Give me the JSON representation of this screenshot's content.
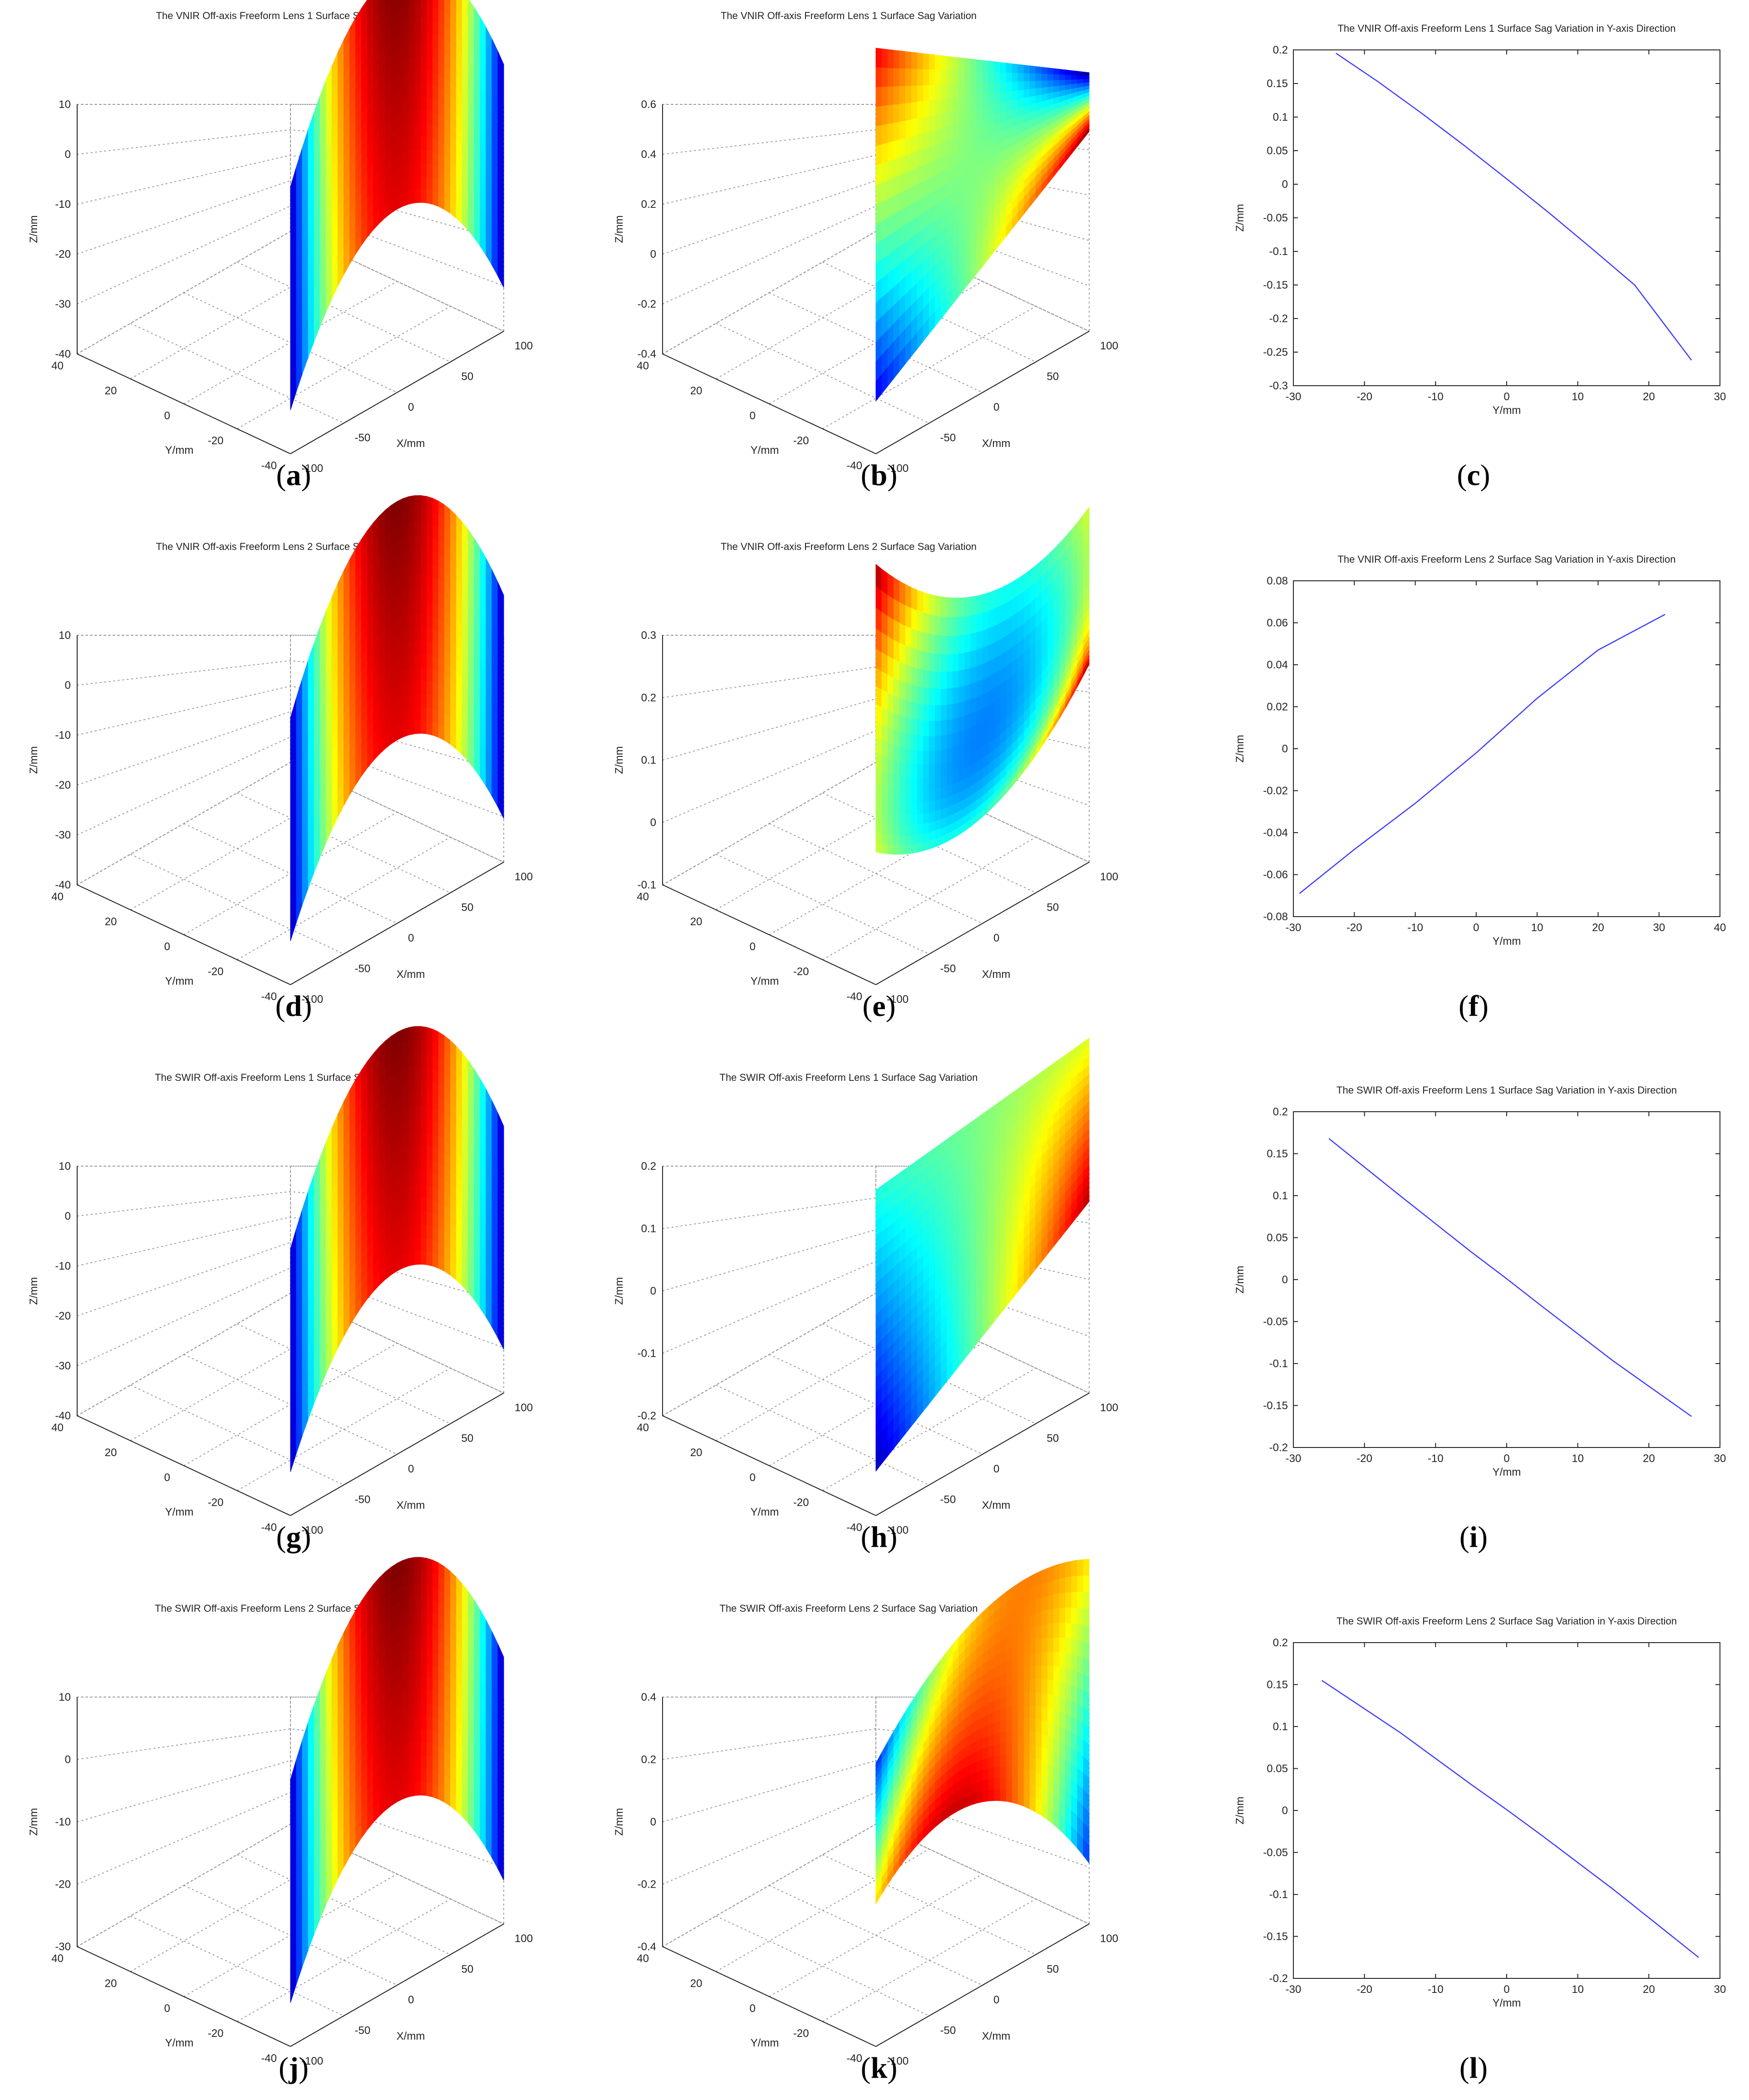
{
  "figure": {
    "panels": [
      {
        "id": "a",
        "kind": "surface",
        "caption_letter": "a",
        "title": "The VNIR Off-axis Freeform Lens 1 Surface Sag",
        "zlim": [
          -40,
          10
        ],
        "zticks": [
          "10",
          "0",
          "-10",
          "-20",
          "-30",
          "-40"
        ],
        "yticks": [
          "40",
          "20",
          "0",
          "-20",
          "-40"
        ],
        "xticks": [
          "-100",
          "-50",
          "0",
          "50",
          "100"
        ],
        "xlabel": "X/mm",
        "ylabel": "Y/mm",
        "zlabel": "Z/mm",
        "shape": "ridge"
      },
      {
        "id": "b",
        "kind": "surface",
        "caption_letter": "b",
        "title": "The VNIR Off-axis Freeform Lens 1 Surface Sag Variation",
        "zlim": [
          -0.4,
          0.6
        ],
        "zticks": [
          "0.6",
          "0.4",
          "0.2",
          "0",
          "-0.2",
          "-0.4"
        ],
        "yticks": [
          "40",
          "20",
          "0",
          "-20",
          "-40"
        ],
        "xticks": [
          "-100",
          "-50",
          "0",
          "50",
          "100"
        ],
        "xlabel": "X/mm",
        "ylabel": "Y/mm",
        "zlabel": "Z/mm",
        "shape": "twist"
      },
      {
        "id": "c",
        "kind": "line",
        "caption_letter": "c",
        "title": "The VNIR Off-axis Freeform Lens 1 Surface Sag Variation in Y-axis Direction",
        "xlabel": "Y/mm",
        "ylabel": "Z/mm",
        "xlim": [
          -30,
          30
        ],
        "ylim": [
          -0.3,
          0.2
        ],
        "xticks": [
          "-30",
          "-20",
          "-10",
          "0",
          "10",
          "20",
          "30"
        ],
        "yticks": [
          "0.2",
          "0.15",
          "0.1",
          "0.05",
          "0",
          "-0.05",
          "-0.1",
          "-0.15",
          "-0.2",
          "-0.25",
          "-0.3"
        ],
        "x": [
          -24,
          -18,
          -12,
          -6,
          0,
          6,
          12,
          18,
          26
        ],
        "y": [
          0.195,
          0.152,
          0.106,
          0.058,
          0.008,
          -0.043,
          -0.096,
          -0.15,
          -0.262
        ]
      },
      {
        "id": "d",
        "kind": "surface",
        "caption_letter": "d",
        "title": "The VNIR Off-axis Freeform Lens 2 Surface Sag",
        "zlim": [
          -40,
          10
        ],
        "zticks": [
          "10",
          "0",
          "-10",
          "-20",
          "-30",
          "-40"
        ],
        "yticks": [
          "40",
          "20",
          "0",
          "-20",
          "-40"
        ],
        "xticks": [
          "-100",
          "-50",
          "0",
          "50",
          "100"
        ],
        "xlabel": "X/mm",
        "ylabel": "Y/mm",
        "zlabel": "Z/mm",
        "shape": "ridge"
      },
      {
        "id": "e",
        "kind": "surface",
        "caption_letter": "e",
        "title": "The VNIR Off-axis Freeform Lens 2 Surface Sag Variation",
        "zlim": [
          -0.1,
          0.3
        ],
        "zticks": [
          "0.3",
          "0.2",
          "0.1",
          "0",
          "-0.1"
        ],
        "yticks": [
          "40",
          "20",
          "0",
          "-20",
          "-40"
        ],
        "xticks": [
          "-100",
          "-50",
          "0",
          "50",
          "100"
        ],
        "xlabel": "X/mm",
        "ylabel": "Y/mm",
        "zlabel": "Z/mm",
        "shape": "bowl"
      },
      {
        "id": "f",
        "kind": "line",
        "caption_letter": "f",
        "title": "The VNIR Off-axis Freeform Lens 2 Surface Sag Variation in Y-axis Direction",
        "xlabel": "Y/mm",
        "ylabel": "Z/mm",
        "xlim": [
          -30,
          40
        ],
        "ylim": [
          -0.08,
          0.08
        ],
        "xticks": [
          "-30",
          "-20",
          "-10",
          "0",
          "10",
          "20",
          "30",
          "40"
        ],
        "yticks": [
          "0.08",
          "0.06",
          "0.04",
          "0.02",
          "0",
          "-0.02",
          "-0.04",
          "-0.06",
          "-0.08"
        ],
        "x": [
          -29,
          -20,
          -10,
          0,
          10,
          20,
          31
        ],
        "y": [
          -0.069,
          -0.048,
          -0.026,
          -0.002,
          0.024,
          0.047,
          0.064
        ]
      },
      {
        "id": "g",
        "kind": "surface",
        "caption_letter": "g",
        "title": "The SWIR Off-axis Freeform Lens 1 Surface Sag",
        "zlim": [
          -40,
          10
        ],
        "zticks": [
          "10",
          "0",
          "-10",
          "-20",
          "-30",
          "-40"
        ],
        "yticks": [
          "40",
          "20",
          "0",
          "-20",
          "-40"
        ],
        "xticks": [
          "-100",
          "-50",
          "0",
          "50",
          "100"
        ],
        "xlabel": "X/mm",
        "ylabel": "Y/mm",
        "zlabel": "Z/mm",
        "shape": "ridge"
      },
      {
        "id": "h",
        "kind": "surface",
        "caption_letter": "h",
        "title": "The SWIR Off-axis Freeform Lens 1 Surface Sag Variation",
        "zlim": [
          -0.2,
          0.2
        ],
        "zticks": [
          "0.2",
          "0.1",
          "0",
          "-0.1",
          "-0.2"
        ],
        "yticks": [
          "40",
          "20",
          "0",
          "-20",
          "-40"
        ],
        "xticks": [
          "-100",
          "-50",
          "0",
          "50",
          "100"
        ],
        "xlabel": "X/mm",
        "ylabel": "Y/mm",
        "zlabel": "Z/mm",
        "shape": "wing"
      },
      {
        "id": "i",
        "kind": "line",
        "caption_letter": "i",
        "title": "The SWIR Off-axis Freeform Lens 1 Surface Sag Variation in Y-axis Direction",
        "xlabel": "Y/mm",
        "ylabel": "Z/mm",
        "xlim": [
          -30,
          30
        ],
        "ylim": [
          -0.2,
          0.2
        ],
        "xticks": [
          "-30",
          "-20",
          "-10",
          "0",
          "10",
          "20",
          "30"
        ],
        "yticks": [
          "0.2",
          "0.15",
          "0.1",
          "0.05",
          "0",
          "-0.05",
          "-0.1",
          "-0.15",
          "-0.2"
        ],
        "x": [
          -25,
          -15,
          -5,
          0,
          5,
          15,
          26
        ],
        "y": [
          0.168,
          0.1,
          0.033,
          0.001,
          -0.032,
          -0.097,
          -0.163
        ]
      },
      {
        "id": "j",
        "kind": "surface",
        "caption_letter": "j",
        "title": "The SWIR Off-axis Freeform Lens 2 Surface Sag",
        "zlim": [
          -30,
          10
        ],
        "zticks": [
          "10",
          "0",
          "-10",
          "-20",
          "-30"
        ],
        "yticks": [
          "40",
          "20",
          "0",
          "-20",
          "-40"
        ],
        "xticks": [
          "-100",
          "-50",
          "0",
          "50",
          "100"
        ],
        "xlabel": "X/mm",
        "ylabel": "Y/mm",
        "zlabel": "Z/mm",
        "shape": "ridge"
      },
      {
        "id": "k",
        "kind": "surface",
        "caption_letter": "k",
        "title": "The SWIR Off-axis Freeform Lens 2 Surface Sag Variation",
        "zlim": [
          -0.4,
          0.4
        ],
        "zticks": [
          "0.4",
          "0.2",
          "0",
          "-0.2",
          "-0.4"
        ],
        "yticks": [
          "40",
          "20",
          "0",
          "-20",
          "-40"
        ],
        "xticks": [
          "-100",
          "-50",
          "0",
          "50",
          "100"
        ],
        "xlabel": "X/mm",
        "ylabel": "Y/mm",
        "zlabel": "Z/mm",
        "shape": "saddle"
      },
      {
        "id": "l",
        "kind": "line",
        "caption_letter": "l",
        "title": "The SWIR Off-axis Freeform Lens 2 Surface Sag Variation in Y-axis Direction",
        "xlabel": "Y/mm",
        "ylabel": "Z/mm",
        "xlim": [
          -30,
          30
        ],
        "ylim": [
          -0.2,
          0.2
        ],
        "xticks": [
          "-30",
          "-20",
          "-10",
          "0",
          "10",
          "20",
          "30"
        ],
        "yticks": [
          "0.2",
          "0.15",
          "0.1",
          "0.05",
          "0",
          "-0.05",
          "-0.1",
          "-0.15",
          "-0.2"
        ],
        "x": [
          -26,
          -15,
          -5,
          0,
          5,
          15,
          27
        ],
        "y": [
          0.155,
          0.093,
          0.031,
          0.001,
          -0.03,
          -0.094,
          -0.175
        ]
      }
    ]
  },
  "chart_data": [
    {
      "panel": "c",
      "type": "line",
      "title": "The VNIR Off-axis Freeform Lens 1 Surface Sag Variation in Y-axis Direction",
      "xlabel": "Y/mm",
      "ylabel": "Z/mm",
      "xlim": [
        -30,
        30
      ],
      "ylim": [
        -0.3,
        0.2
      ],
      "x": [
        -24,
        -18,
        -12,
        -6,
        0,
        6,
        12,
        18,
        26
      ],
      "y": [
        0.195,
        0.152,
        0.106,
        0.058,
        0.008,
        -0.043,
        -0.096,
        -0.15,
        -0.262
      ]
    },
    {
      "panel": "f",
      "type": "line",
      "title": "The VNIR Off-axis Freeform Lens 2 Surface Sag Variation in Y-axis Direction",
      "xlabel": "Y/mm",
      "ylabel": "Z/mm",
      "xlim": [
        -30,
        40
      ],
      "ylim": [
        -0.08,
        0.08
      ],
      "x": [
        -29,
        -20,
        -10,
        0,
        10,
        20,
        31
      ],
      "y": [
        -0.069,
        -0.048,
        -0.026,
        -0.002,
        0.024,
        0.047,
        0.064
      ]
    },
    {
      "panel": "i",
      "type": "line",
      "title": "The SWIR Off-axis Freeform Lens 1 Surface Sag Variation in Y-axis Direction",
      "xlabel": "Y/mm",
      "ylabel": "Z/mm",
      "xlim": [
        -30,
        30
      ],
      "ylim": [
        -0.2,
        0.2
      ],
      "x": [
        -25,
        -15,
        -5,
        0,
        5,
        15,
        26
      ],
      "y": [
        0.168,
        0.1,
        0.033,
        0.001,
        -0.032,
        -0.097,
        -0.163
      ]
    },
    {
      "panel": "l",
      "type": "line",
      "title": "The SWIR Off-axis Freeform Lens 2 Surface Sag Variation in Y-axis Direction",
      "xlabel": "Y/mm",
      "ylabel": "Z/mm",
      "xlim": [
        -30,
        30
      ],
      "ylim": [
        -0.2,
        0.2
      ],
      "x": [
        -26,
        -15,
        -5,
        0,
        5,
        15,
        27
      ],
      "y": [
        0.155,
        0.093,
        0.031,
        0.001,
        -0.03,
        -0.094,
        -0.175
      ]
    },
    {
      "panel": "a",
      "type": "surface",
      "title": "The VNIR Off-axis Freeform Lens 1 Surface Sag",
      "zlim": [
        -40,
        10
      ],
      "xlim": [
        -100,
        100
      ],
      "ylim": [
        -40,
        40
      ]
    },
    {
      "panel": "b",
      "type": "surface",
      "title": "The VNIR Off-axis Freeform Lens 1 Surface Sag Variation",
      "zlim": [
        -0.4,
        0.6
      ],
      "xlim": [
        -100,
        100
      ],
      "ylim": [
        -40,
        40
      ]
    },
    {
      "panel": "d",
      "type": "surface",
      "title": "The VNIR Off-axis Freeform Lens 2 Surface Sag",
      "zlim": [
        -40,
        10
      ],
      "xlim": [
        -100,
        100
      ],
      "ylim": [
        -40,
        40
      ]
    },
    {
      "panel": "e",
      "type": "surface",
      "title": "The VNIR Off-axis Freeform Lens 2 Surface Sag Variation",
      "zlim": [
        -0.1,
        0.3
      ],
      "xlim": [
        -100,
        100
      ],
      "ylim": [
        -40,
        40
      ]
    },
    {
      "panel": "g",
      "type": "surface",
      "title": "The SWIR Off-axis Freeform Lens 1 Surface Sag",
      "zlim": [
        -40,
        10
      ],
      "xlim": [
        -100,
        100
      ],
      "ylim": [
        -40,
        40
      ]
    },
    {
      "panel": "h",
      "type": "surface",
      "title": "The SWIR Off-axis Freeform Lens 1 Surface Sag Variation",
      "zlim": [
        -0.2,
        0.2
      ],
      "xlim": [
        -100,
        100
      ],
      "ylim": [
        -40,
        40
      ]
    },
    {
      "panel": "j",
      "type": "surface",
      "title": "The SWIR Off-axis Freeform Lens 2 Surface Sag",
      "zlim": [
        -30,
        10
      ],
      "xlim": [
        -100,
        100
      ],
      "ylim": [
        -40,
        40
      ]
    },
    {
      "panel": "k",
      "type": "surface",
      "title": "The SWIR Off-axis Freeform Lens 2 Surface Sag Variation",
      "zlim": [
        -0.4,
        0.4
      ],
      "xlim": [
        -100,
        100
      ],
      "ylim": [
        -40,
        40
      ]
    }
  ]
}
